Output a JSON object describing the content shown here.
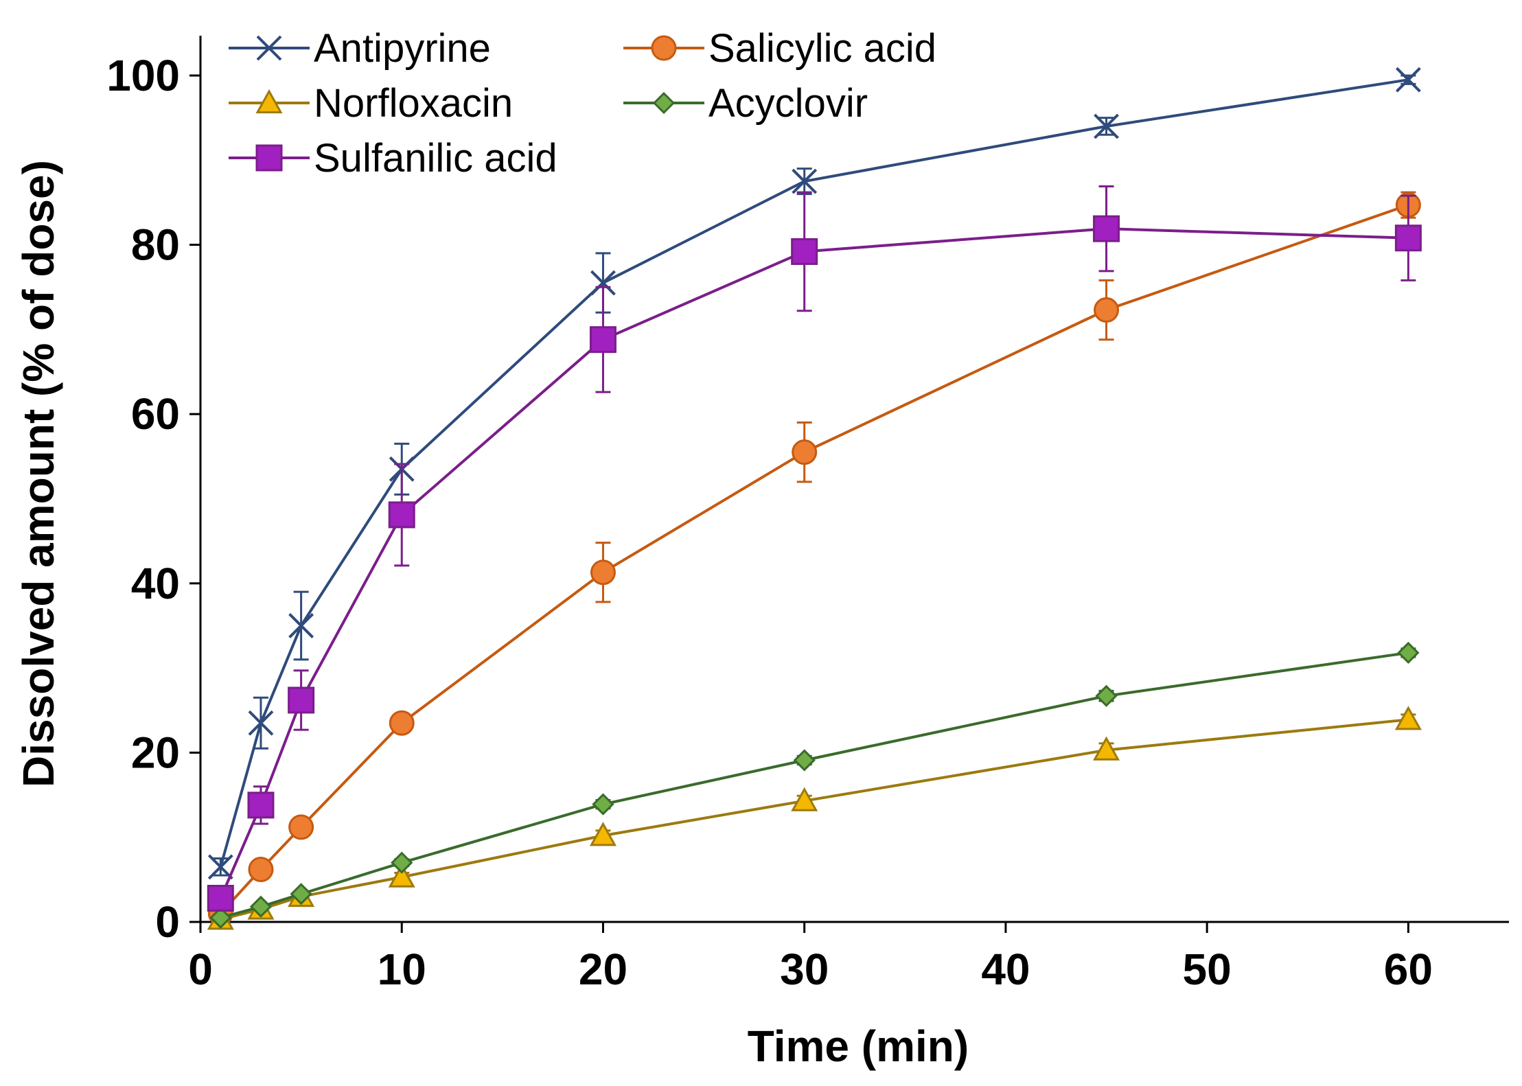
{
  "chart_data": {
    "type": "line",
    "title": "",
    "xlabel": "Time (min)",
    "ylabel": "Dissolved amount (% of dose)",
    "xlim": [
      0,
      65
    ],
    "ylim": [
      0,
      100
    ],
    "xticks": [
      0,
      10,
      20,
      30,
      40,
      50,
      60
    ],
    "yticks": [
      0,
      20,
      40,
      60,
      80,
      100
    ],
    "xtick_labels": [
      "0",
      "10",
      "20",
      "30",
      "40",
      "50",
      "60"
    ],
    "ytick_labels": [
      "0",
      "20",
      "40",
      "60",
      "80",
      "100"
    ],
    "grid": false,
    "legend_position": "top-left",
    "x": [
      1,
      3,
      5,
      10,
      20,
      30,
      45,
      60
    ],
    "series": [
      {
        "name": "Antipyrine",
        "marker": "x",
        "color": "#2F4B7C",
        "values": [
          6.5,
          23.5,
          35.0,
          53.5,
          75.5,
          87.5,
          94.0,
          99.5
        ],
        "errors": [
          1.0,
          3.0,
          4.0,
          3.0,
          3.5,
          1.5,
          1.0,
          0.5
        ]
      },
      {
        "name": "Salicylic acid",
        "marker": "circle",
        "color": "#C55A11",
        "fill": "#ED7D31",
        "values": [
          1.0,
          6.2,
          11.2,
          23.5,
          41.3,
          55.5,
          72.3,
          84.7
        ],
        "errors": [
          0.3,
          0.8,
          0.8,
          1.0,
          3.5,
          3.5,
          3.5,
          1.5
        ]
      },
      {
        "name": "Norfloxacin",
        "marker": "triangle",
        "color": "#9C7A0F",
        "fill": "#F5B800",
        "values": [
          0.3,
          1.5,
          3.0,
          5.3,
          10.2,
          14.3,
          20.3,
          23.9
        ],
        "errors": [
          0.2,
          0.3,
          0.3,
          0.5,
          0.6,
          0.6,
          0.8,
          0.6
        ]
      },
      {
        "name": "Acyclovir",
        "marker": "diamond",
        "color": "#3A6B2B",
        "fill": "#70AD47",
        "values": [
          0.5,
          1.8,
          3.3,
          7.0,
          13.9,
          19.1,
          26.7,
          31.8
        ],
        "errors": [
          0.2,
          0.3,
          0.3,
          0.4,
          0.5,
          0.5,
          0.6,
          0.5
        ]
      },
      {
        "name": "Sulfanilic acid",
        "marker": "square",
        "color": "#7B1E8A",
        "fill": "#A020C0",
        "values": [
          2.8,
          13.8,
          26.2,
          48.1,
          68.8,
          79.2,
          81.9,
          80.8
        ],
        "errors": [
          1.0,
          2.2,
          3.5,
          6.0,
          6.2,
          7.0,
          5.0,
          5.0
        ]
      }
    ]
  }
}
